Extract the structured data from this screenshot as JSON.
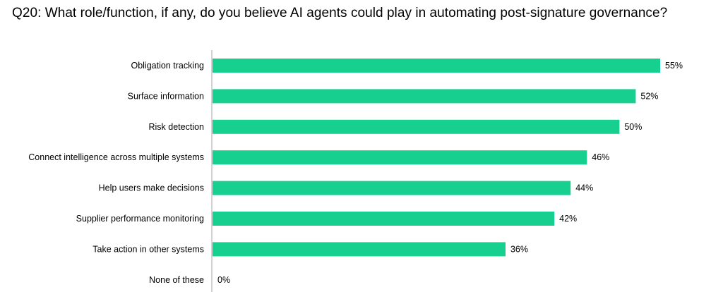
{
  "chart_data": {
    "type": "bar",
    "orientation": "horizontal",
    "title": "Q20: What role/function, if any, do you believe AI agents could play in automating post-signature governance?",
    "categories": [
      "Obligation tracking",
      "Surface information",
      "Risk detection",
      "Connect intelligence across multiple systems",
      "Help users make decisions",
      "Supplier performance monitoring",
      "Take action in other systems",
      "None of these"
    ],
    "values": [
      55,
      52,
      50,
      46,
      44,
      42,
      36,
      0
    ],
    "data_labels": [
      "55%",
      "52%",
      "50%",
      "46%",
      "44%",
      "42%",
      "36%",
      "0%"
    ],
    "unit": "%",
    "xlabel": "",
    "ylabel": "",
    "xlim": [
      0,
      55
    ],
    "grid": false,
    "legend": "none",
    "bar_color": "#17CF8F",
    "axis_color": "#A6A6A6"
  }
}
